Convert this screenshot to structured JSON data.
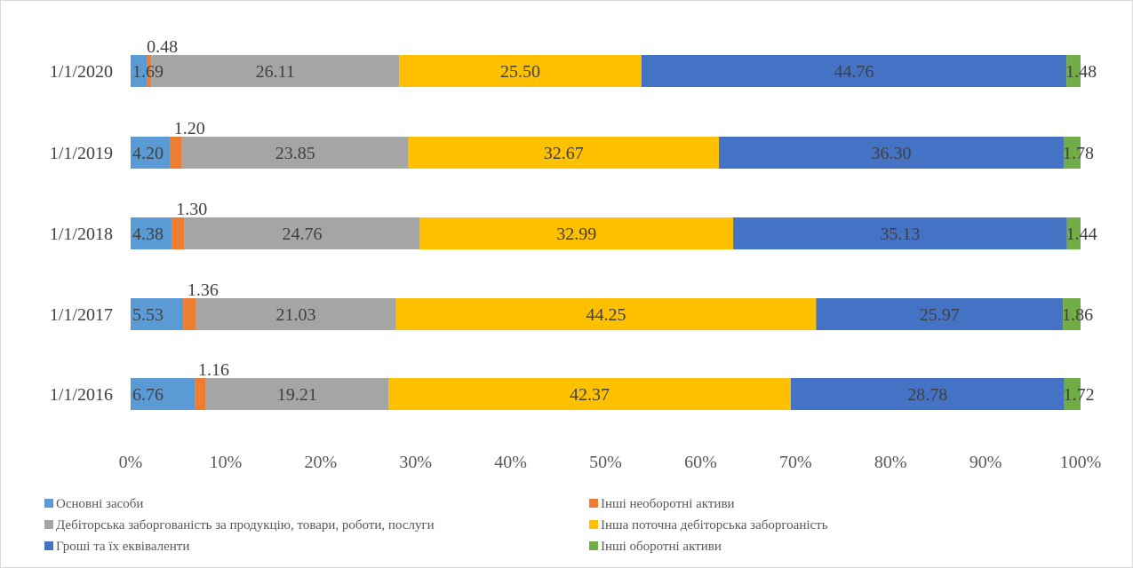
{
  "chart_data": {
    "type": "bar",
    "orientation": "horizontal",
    "stacking": "percent",
    "categories": [
      "1/1/2020",
      "1/1/2019",
      "1/1/2018",
      "1/1/2017",
      "1/1/2016"
    ],
    "series": [
      {
        "name": "Основні засоби",
        "color": "#5B9BD5",
        "values": [
          1.69,
          4.2,
          4.38,
          5.53,
          6.76
        ]
      },
      {
        "name": "Інші необоротні активи",
        "color": "#ED7D31",
        "values": [
          0.48,
          1.2,
          1.3,
          1.36,
          1.16
        ]
      },
      {
        "name": "Дебіторська заборгованість за продукцію, товари, роботи, послуги",
        "color": "#A5A5A5",
        "values": [
          26.11,
          23.85,
          24.76,
          21.03,
          19.21
        ]
      },
      {
        "name": "Інша поточна дебіторська заборгоаність",
        "color": "#FFC000",
        "values": [
          25.5,
          32.67,
          32.99,
          44.25,
          42.37
        ]
      },
      {
        "name": "Гроші та їх еквіваленти",
        "color": "#4472C4",
        "values": [
          44.76,
          36.3,
          35.13,
          25.97,
          28.78
        ]
      },
      {
        "name": "Інші оборотні активи",
        "color": "#70AD47",
        "values": [
          1.48,
          1.78,
          1.44,
          1.86,
          1.72
        ]
      }
    ],
    "x_ticks": [
      "0%",
      "10%",
      "20%",
      "30%",
      "40%",
      "50%",
      "60%",
      "70%",
      "80%",
      "90%",
      "100%"
    ],
    "xlim": [
      0,
      100
    ],
    "grid": false,
    "legend_position": "bottom"
  }
}
